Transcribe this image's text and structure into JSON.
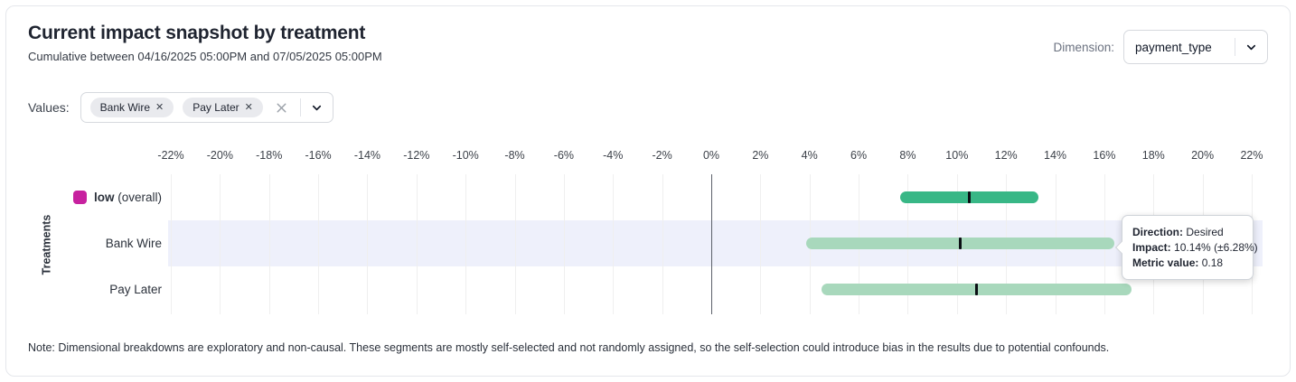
{
  "header": {
    "title": "Current impact snapshot by treatment",
    "subtitle": "Cumulative between 04/16/2025 05:00PM and 07/05/2025 05:00PM",
    "dimension_label": "Dimension:",
    "dimension_value": "payment_type"
  },
  "filters": {
    "values_label": "Values:",
    "chips": [
      {
        "label": "Bank Wire"
      },
      {
        "label": "Pay Later"
      }
    ]
  },
  "chart_data": {
    "type": "bar",
    "orientation": "horizontal-interval",
    "ylabel": "Treatments",
    "xlim": [
      -22,
      22
    ],
    "x_ticks": [
      -22,
      -20,
      -18,
      -16,
      -14,
      -12,
      -10,
      -8,
      -6,
      -4,
      -2,
      0,
      2,
      4,
      6,
      8,
      10,
      12,
      14,
      16,
      18,
      20,
      22
    ],
    "x_tick_suffix": "%",
    "grid": true,
    "colors": {
      "overall_bar": "#38b786",
      "segment_bar": "#a8d8bc",
      "marker": "#0b0f14",
      "legend_swatch": "#c7219f",
      "highlight_band": "#eef0fb",
      "zero_line": "#5b6069"
    },
    "rows": [
      {
        "label_parts": [
          {
            "text": "low",
            "bold": true
          },
          {
            "text": " (overall)",
            "bold": false
          }
        ],
        "legend_color": "#c7219f",
        "bar_color": "#38b786",
        "low": 7.7,
        "center": 10.5,
        "high": 13.3,
        "highlight": false
      },
      {
        "label_parts": [
          {
            "text": "Bank Wire",
            "bold": false
          }
        ],
        "bar_color": "#a8d8bc",
        "low": 3.86,
        "center": 10.14,
        "high": 16.42,
        "highlight": true
      },
      {
        "label_parts": [
          {
            "text": "Pay Later",
            "bold": false
          }
        ],
        "bar_color": "#a8d8bc",
        "low": 4.5,
        "center": 10.8,
        "high": 17.1,
        "highlight": false
      }
    ]
  },
  "tooltip": {
    "direction_label": "Direction:",
    "direction_value": "Desired",
    "impact_label": "Impact:",
    "impact_value": "10.14% (±6.28%)",
    "metric_label": "Metric value:",
    "metric_value": "0.18"
  },
  "note": "Note: Dimensional breakdowns are exploratory and non-causal. These segments are mostly self-selected and not randomly assigned, so the self-selection could introduce bias in the results due to potential confounds."
}
